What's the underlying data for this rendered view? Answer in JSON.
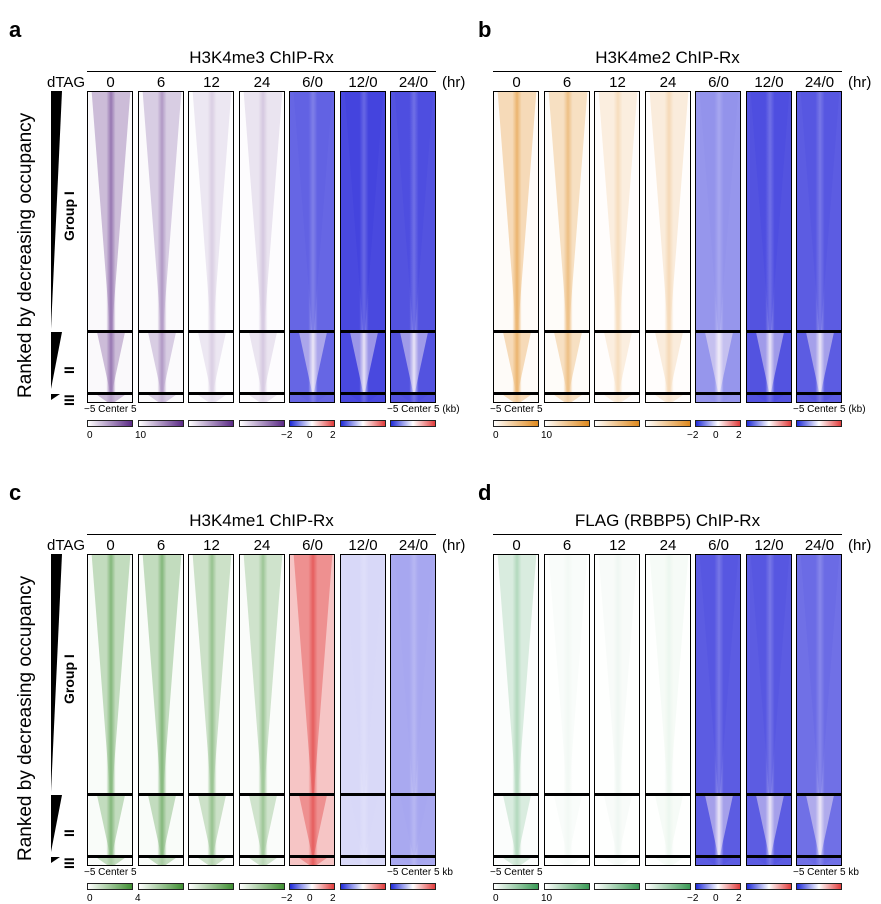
{
  "panels": [
    {
      "id": "a",
      "letter": "a",
      "title": "H3K4me3 ChIP-Rx",
      "row_label": "dTAG",
      "unit_label": "(hr)",
      "columns": [
        "0",
        "6",
        "12",
        "24",
        "6/0",
        "12/0",
        "24/0"
      ],
      "column_modes": [
        "signal",
        "signal",
        "signal",
        "signal",
        "ratio",
        "ratio",
        "ratio"
      ],
      "signal_strength": [
        1.0,
        0.75,
        0.35,
        0.4,
        1.0,
        1.0,
        1.0
      ],
      "ratio_bias": [
        0,
        0,
        0,
        0,
        -0.8,
        -0.95,
        -0.9
      ],
      "signal_color": "#5b2a86",
      "axis_left": "−5 Center 5",
      "axis_right": "−5 Center  5 (kb)",
      "cbar_signal_ticks": [
        "0",
        "10"
      ],
      "cbar_ratio_ticks": [
        "−2",
        "0",
        "2"
      ],
      "ranked_label": "Ranked by decreasing occupancy",
      "groups": [
        "Group I",
        "II",
        "III"
      ]
    },
    {
      "id": "b",
      "letter": "b",
      "title": "H3K4me2 ChIP-Rx",
      "row_label": "",
      "unit_label": "(hr)",
      "columns": [
        "0",
        "6",
        "12",
        "24",
        "6/0",
        "12/0",
        "24/0"
      ],
      "column_modes": [
        "signal",
        "signal",
        "signal",
        "signal",
        "ratio",
        "ratio",
        "ratio"
      ],
      "signal_strength": [
        1.0,
        0.85,
        0.45,
        0.5,
        1.0,
        1.0,
        1.0
      ],
      "ratio_bias": [
        0,
        0,
        0,
        0,
        -0.55,
        -0.9,
        -0.85
      ],
      "signal_color": "#e08a1e",
      "axis_left": "−5 Center 5",
      "axis_right": "−5 Center  5 (kb)",
      "cbar_signal_ticks": [
        "0",
        "10"
      ],
      "cbar_ratio_ticks": [
        "−2",
        "0",
        "2"
      ],
      "ranked_label": "",
      "groups": []
    },
    {
      "id": "c",
      "letter": "c",
      "title": "H3K4me1 ChIP-Rx",
      "row_label": "dTAG",
      "unit_label": "(hr)",
      "columns": [
        "0",
        "6",
        "12",
        "24",
        "6/0",
        "12/0",
        "24/0"
      ],
      "column_modes": [
        "signal",
        "signal",
        "signal",
        "signal",
        "ratio",
        "ratio",
        "ratio"
      ],
      "signal_strength": [
        1.0,
        1.0,
        0.85,
        0.8,
        1.0,
        1.0,
        1.0
      ],
      "ratio_bias": [
        0,
        0,
        0,
        0,
        0.35,
        -0.2,
        -0.45
      ],
      "signal_color": "#3f8f32",
      "axis_left": "−5 Center 5",
      "axis_right": "−5 Center 5 kb",
      "cbar_signal_ticks": [
        "0",
        "4"
      ],
      "cbar_ratio_ticks": [
        "−2",
        "0",
        "2"
      ],
      "ranked_label": "Ranked by decreasing occupancy",
      "groups": [
        "Group I",
        "II",
        "III"
      ]
    },
    {
      "id": "d",
      "letter": "d",
      "title": "FLAG (RBBP5) ChIP-Rx",
      "row_label": "",
      "unit_label": "(hr)",
      "columns": [
        "0",
        "6",
        "12",
        "24",
        "6/0",
        "12/0",
        "24/0"
      ],
      "column_modes": [
        "signal",
        "signal",
        "signal",
        "signal",
        "ratio",
        "ratio",
        "ratio"
      ],
      "signal_strength": [
        0.6,
        0.1,
        0.12,
        0.15,
        1.0,
        1.0,
        1.0
      ],
      "ratio_bias": [
        0,
        0,
        0,
        0,
        -0.85,
        -0.85,
        -0.75
      ],
      "signal_color": "#3a9a55",
      "axis_left": "−5 Center 5",
      "axis_right": "−5 Center 5 kb",
      "cbar_signal_ticks": [
        "0",
        "10"
      ],
      "cbar_ratio_ticks": [
        "−2",
        "0",
        "2"
      ],
      "ranked_label": "",
      "groups": []
    }
  ]
}
